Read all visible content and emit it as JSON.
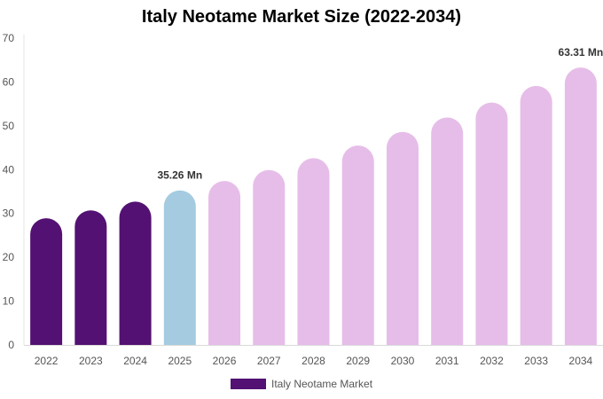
{
  "chart_data": {
    "type": "bar",
    "title": "Italy Neotame Market Size (2022-2034)",
    "categories": [
      "2022",
      "2023",
      "2024",
      "2025",
      "2026",
      "2027",
      "2028",
      "2029",
      "2030",
      "2031",
      "2032",
      "2033",
      "2034"
    ],
    "values": [
      28.9,
      30.7,
      32.7,
      35.26,
      37.4,
      39.9,
      42.6,
      45.5,
      48.6,
      51.9,
      55.3,
      59.1,
      63.31
    ],
    "series": [
      {
        "name": "Italy Neotame Market",
        "values": [
          28.9,
          30.7,
          32.7,
          35.26,
          37.4,
          39.9,
          42.6,
          45.5,
          48.6,
          51.9,
          55.3,
          59.1,
          63.31
        ]
      }
    ],
    "bar_colors": [
      "#521173",
      "#521173",
      "#521173",
      "#a4cbe0",
      "#e6bde8",
      "#e6bde8",
      "#e6bde8",
      "#e6bde8",
      "#e6bde8",
      "#e6bde8",
      "#e6bde8",
      "#e6bde8",
      "#e6bde8"
    ],
    "data_labels": [
      {
        "category": "2025",
        "text": "35.26 Mn"
      },
      {
        "category": "2034",
        "text": "63.31 Mn"
      }
    ],
    "xlabel": "",
    "ylabel": "",
    "ylim": [
      0,
      70
    ],
    "yticks": [
      0,
      10,
      20,
      30,
      40,
      50,
      60,
      70
    ],
    "grid": false,
    "legend_position": "bottom-center",
    "legend_color": "#521173"
  }
}
